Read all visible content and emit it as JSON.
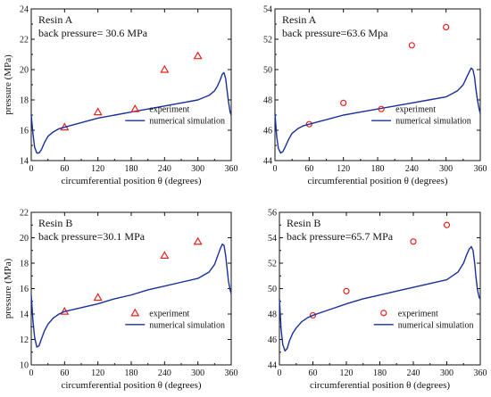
{
  "colors": {
    "axis": "#111111",
    "experiment": "#e8231f",
    "simulation": "#1a2f9e"
  },
  "chart_data": [
    {
      "type": "line",
      "panel_label": "Resin A",
      "condition_label": "back pressure= 30.6 MPa",
      "xlabel": "circumferential position θ (degrees)",
      "ylabel": "pressure (MPa)",
      "xlim": [
        0,
        360
      ],
      "ylim": [
        14,
        24
      ],
      "xticks": [
        0,
        60,
        120,
        180,
        240,
        300,
        360
      ],
      "yticks": [
        14,
        16,
        18,
        20,
        22,
        24
      ],
      "legend": {
        "placement": "center-right"
      },
      "series": [
        {
          "name": "experiment",
          "kind": "scatter",
          "marker": "triangle",
          "x": [
            60,
            120,
            240,
            300
          ],
          "y": [
            16.2,
            17.2,
            20.0,
            20.9
          ]
        },
        {
          "name": "numerical simulation",
          "kind": "line",
          "x": [
            0,
            3,
            6,
            10,
            14,
            18,
            24,
            30,
            40,
            50,
            60,
            80,
            100,
            120,
            150,
            180,
            210,
            240,
            270,
            300,
            320,
            330,
            335,
            340,
            344,
            347,
            350,
            352,
            355,
            358,
            360
          ],
          "y": [
            17.0,
            15.8,
            14.9,
            14.5,
            14.5,
            14.7,
            15.2,
            15.6,
            15.9,
            16.1,
            16.2,
            16.4,
            16.6,
            16.8,
            17.0,
            17.2,
            17.4,
            17.6,
            17.8,
            18.0,
            18.3,
            18.6,
            18.9,
            19.3,
            19.7,
            19.8,
            19.4,
            18.8,
            17.9,
            17.2,
            17.0
          ]
        }
      ]
    },
    {
      "type": "line",
      "panel_label": "Resin A",
      "condition_label": "back pressure=63.6 Mpa",
      "xlabel": "circumferential position θ (degrees)",
      "ylabel": "",
      "xlim": [
        0,
        360
      ],
      "ylim": [
        44,
        54
      ],
      "xticks": [
        0,
        60,
        120,
        180,
        240,
        300,
        360
      ],
      "yticks": [
        44,
        46,
        48,
        50,
        52,
        54
      ],
      "legend": {
        "placement": "center-right"
      },
      "series": [
        {
          "name": "experiment",
          "kind": "scatter",
          "marker": "circle",
          "x": [
            60,
            120,
            240,
            300
          ],
          "y": [
            46.4,
            47.8,
            51.6,
            52.8
          ]
        },
        {
          "name": "numerical simulation",
          "kind": "line",
          "x": [
            0,
            3,
            6,
            10,
            14,
            18,
            24,
            30,
            40,
            50,
            60,
            80,
            100,
            120,
            150,
            180,
            210,
            240,
            270,
            300,
            320,
            330,
            335,
            340,
            344,
            347,
            350,
            352,
            355,
            358,
            360
          ],
          "y": [
            47.1,
            45.6,
            44.8,
            44.5,
            44.6,
            44.9,
            45.4,
            45.8,
            46.1,
            46.3,
            46.4,
            46.6,
            46.8,
            47.0,
            47.2,
            47.4,
            47.6,
            47.8,
            48.0,
            48.2,
            48.6,
            49.0,
            49.4,
            49.8,
            50.1,
            50.0,
            49.5,
            48.8,
            48.0,
            47.4,
            47.1
          ]
        }
      ]
    },
    {
      "type": "line",
      "panel_label": "Resin B",
      "condition_label": "back pressure=30.1 MPa",
      "xlabel": "circumferential position θ (degrees)",
      "ylabel": "pressure (MPa)",
      "xlim": [
        0,
        360
      ],
      "ylim": [
        10,
        22
      ],
      "xticks": [
        0,
        60,
        120,
        180,
        240,
        300,
        360
      ],
      "yticks": [
        10,
        12,
        14,
        16,
        18,
        20,
        22
      ],
      "legend": {
        "placement": "center-right"
      },
      "series": [
        {
          "name": "experiment",
          "kind": "scatter",
          "marker": "triangle",
          "x": [
            60,
            120,
            240,
            300
          ],
          "y": [
            14.2,
            15.3,
            18.6,
            19.7
          ]
        },
        {
          "name": "numerical simulation",
          "kind": "line",
          "x": [
            0,
            3,
            6,
            10,
            14,
            18,
            24,
            30,
            40,
            50,
            60,
            80,
            100,
            120,
            150,
            180,
            210,
            240,
            270,
            300,
            320,
            330,
            335,
            340,
            344,
            347,
            350,
            352,
            355,
            358,
            360
          ],
          "y": [
            15.5,
            13.5,
            12.2,
            11.4,
            11.5,
            12.0,
            12.7,
            13.2,
            13.7,
            14.0,
            14.2,
            14.4,
            14.6,
            14.8,
            15.2,
            15.5,
            15.9,
            16.2,
            16.5,
            16.8,
            17.3,
            17.9,
            18.5,
            19.1,
            19.5,
            19.4,
            18.6,
            17.8,
            16.6,
            15.9,
            15.6
          ]
        }
      ]
    },
    {
      "type": "line",
      "panel_label": "Resin B",
      "condition_label": "back pressure=65.7 MPa",
      "xlabel": "circumferential position θ (degrees)",
      "ylabel": "",
      "xlim": [
        0,
        360
      ],
      "ylim": [
        44,
        56
      ],
      "xticks": [
        0,
        60,
        120,
        180,
        240,
        300,
        360
      ],
      "yticks": [
        44,
        46,
        48,
        50,
        52,
        54,
        56
      ],
      "legend": {
        "placement": "center-right"
      },
      "series": [
        {
          "name": "experiment",
          "kind": "scatter",
          "marker": "circle",
          "x": [
            60,
            120,
            240,
            300
          ],
          "y": [
            47.9,
            49.8,
            53.7,
            55.0
          ]
        },
        {
          "name": "numerical simulation",
          "kind": "line",
          "x": [
            0,
            3,
            6,
            10,
            14,
            18,
            24,
            30,
            40,
            50,
            60,
            80,
            100,
            120,
            150,
            180,
            210,
            240,
            270,
            300,
            320,
            330,
            335,
            340,
            344,
            347,
            350,
            352,
            355,
            358,
            360
          ],
          "y": [
            49.2,
            46.8,
            45.6,
            45.1,
            45.3,
            45.9,
            46.5,
            46.9,
            47.4,
            47.7,
            47.9,
            48.2,
            48.5,
            48.8,
            49.2,
            49.5,
            49.8,
            50.1,
            50.4,
            50.7,
            51.3,
            52.0,
            52.6,
            53.1,
            53.3,
            53.0,
            52.0,
            51.0,
            49.9,
            49.3,
            49.2
          ]
        }
      ]
    }
  ]
}
